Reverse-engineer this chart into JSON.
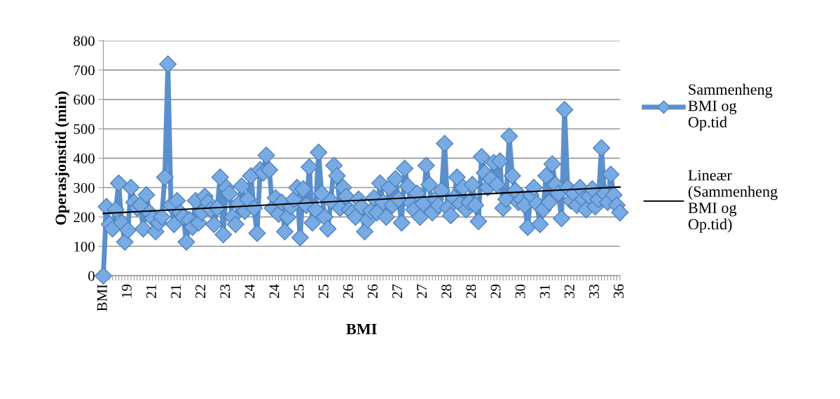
{
  "chart_data": {
    "type": "line",
    "xlabel": "BMI",
    "ylabel": "Operasjonstid (min)",
    "categories": [
      "BMI",
      null,
      null,
      null,
      null,
      null,
      null,
      null,
      "19",
      null,
      null,
      null,
      null,
      null,
      null,
      null,
      "21",
      null,
      null,
      null,
      null,
      null,
      null,
      null,
      "21",
      null,
      null,
      null,
      null,
      null,
      null,
      null,
      "22",
      null,
      null,
      null,
      null,
      null,
      null,
      null,
      "23",
      null,
      null,
      null,
      null,
      null,
      null,
      null,
      "24",
      null,
      null,
      null,
      null,
      null,
      null,
      null,
      "24",
      null,
      null,
      null,
      null,
      null,
      null,
      null,
      "25",
      null,
      null,
      null,
      null,
      null,
      null,
      null,
      "25",
      null,
      null,
      null,
      null,
      null,
      null,
      null,
      "26",
      null,
      null,
      null,
      null,
      null,
      null,
      null,
      "26",
      null,
      null,
      null,
      null,
      null,
      null,
      null,
      "27",
      null,
      null,
      null,
      null,
      null,
      null,
      null,
      "27",
      null,
      null,
      null,
      null,
      null,
      null,
      null,
      "28",
      null,
      null,
      null,
      null,
      null,
      null,
      null,
      "28",
      null,
      null,
      null,
      null,
      null,
      null,
      null,
      "29",
      null,
      null,
      null,
      null,
      null,
      null,
      null,
      "30",
      null,
      null,
      null,
      null,
      null,
      null,
      null,
      "31",
      null,
      null,
      null,
      null,
      null,
      null,
      null,
      "32",
      null,
      null,
      null,
      null,
      null,
      null,
      null,
      "33",
      null,
      null,
      null,
      null,
      null,
      null,
      null,
      "36"
    ],
    "series": [
      {
        "name": "Sammenheng BMI og Op.tid",
        "color": "#5b90cc",
        "marker": "diamond",
        "values": [
          0,
          235,
          175,
          160,
          225,
          315,
          180,
          115,
          155,
          300,
          250,
          230,
          240,
          160,
          275,
          215,
          195,
          150,
          180,
          200,
          335,
          720,
          240,
          175,
          255,
          215,
          200,
          115,
          190,
          165,
          255,
          180,
          215,
          270,
          250,
          225,
          175,
          230,
          335,
          140,
          300,
          280,
          200,
          175,
          245,
          305,
          220,
          260,
          340,
          230,
          145,
          360,
          350,
          410,
          360,
          230,
          265,
          210,
          250,
          150,
          200,
          235,
          260,
          300,
          130,
          295,
          240,
          370,
          180,
          225,
          420,
          280,
          200,
          160,
          255,
          375,
          340,
          230,
          300,
          270,
          225,
          215,
          200,
          260,
          235,
          150,
          190,
          220,
          265,
          215,
          315,
          250,
          200,
          300,
          240,
          330,
          260,
          180,
          365,
          305,
          250,
          225,
          280,
          200,
          245,
          375,
          310,
          215,
          260,
          240,
          290,
          450,
          230,
          205,
          265,
          335,
          245,
          300,
          225,
          250,
          310,
          240,
          185,
          405,
          350,
          300,
          330,
          385,
          310,
          390,
          230,
          260,
          475,
          340,
          290,
          250,
          260,
          240,
          165,
          275,
          300,
          245,
          175,
          225,
          340,
          250,
          380,
          310,
          280,
          195,
          565,
          300,
          255,
          280,
          240,
          300,
          260,
          225,
          270,
          295,
          235,
          260,
          435,
          280,
          250,
          345,
          275,
          240,
          215
        ]
      },
      {
        "name": "Lineær (Sammenheng BMI og Op.tid)",
        "color": "#000000",
        "marker": "none",
        "values": [
          212,
          null,
          null,
          null,
          null,
          null,
          null,
          null,
          null,
          null,
          null,
          null,
          null,
          null,
          null,
          null,
          null,
          null,
          null,
          null,
          null,
          null,
          null,
          null,
          null,
          null,
          null,
          null,
          null,
          null,
          null,
          null,
          null,
          null,
          null,
          null,
          null,
          null,
          null,
          null,
          null,
          null,
          null,
          null,
          null,
          null,
          null,
          null,
          null,
          null,
          null,
          null,
          null,
          null,
          null,
          null,
          null,
          null,
          null,
          null,
          null,
          null,
          null,
          null,
          null,
          null,
          null,
          null,
          null,
          null,
          null,
          null,
          null,
          null,
          null,
          null,
          null,
          null,
          null,
          null,
          null,
          null,
          null,
          null,
          null,
          null,
          null,
          null,
          null,
          null,
          null,
          null,
          null,
          null,
          null,
          null,
          null,
          null,
          null,
          null,
          null,
          null,
          null,
          null,
          null,
          null,
          null,
          null,
          null,
          null,
          null,
          null,
          null,
          null,
          null,
          null,
          null,
          null,
          null,
          null,
          null,
          null,
          null,
          null,
          null,
          null,
          null,
          null,
          null,
          null,
          null,
          null,
          null,
          null,
          null,
          null,
          null,
          null,
          null,
          null,
          null,
          null,
          null,
          null,
          null,
          null,
          null,
          null,
          null,
          null,
          null,
          null,
          null,
          null,
          null,
          null,
          null,
          null,
          null,
          null,
          null,
          null,
          null,
          null,
          null,
          null,
          null,
          null,
          302
        ]
      }
    ],
    "ylim": [
      0,
      800
    ],
    "yticks": [
      0,
      100,
      200,
      300,
      400,
      500,
      600,
      700,
      800
    ],
    "grid": "y",
    "legend": "right"
  }
}
